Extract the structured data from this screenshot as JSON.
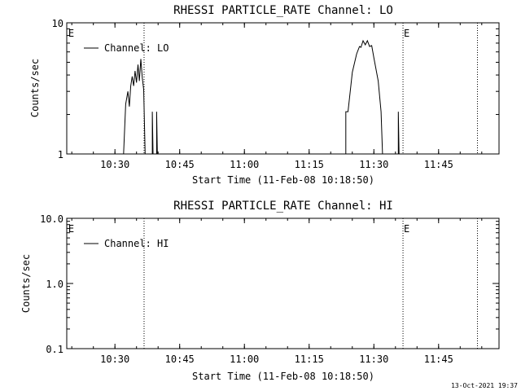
{
  "footer": {
    "timestamp": "13-Oct-2021 19:37"
  },
  "colors": {
    "background": "#ffffff",
    "foreground": "#000000"
  },
  "chart_data": [
    {
      "type": "line",
      "title": "RHESSI PARTICLE_RATE Channel: LO",
      "xlabel": "Start Time (11-Feb-08 10:18:50)",
      "ylabel": "Counts/sec",
      "yscale": "log",
      "xlim": [
        "10:18:50",
        "11:59:00"
      ],
      "ylim": [
        1,
        10
      ],
      "xticks": [
        "10:30",
        "10:45",
        "11:00",
        "11:15",
        "11:30",
        "11:45"
      ],
      "yticks": [
        "1",
        "10"
      ],
      "legend": {
        "label": "Channel: LO",
        "position": "top-left"
      },
      "event_markers": [
        {
          "time": "10:19:00",
          "label": "E",
          "line": false
        },
        {
          "time": "10:36:45",
          "label": "",
          "line": true
        },
        {
          "time": "11:36:45",
          "label": "E",
          "line": true
        },
        {
          "time": "11:54:00",
          "label": "",
          "line": true
        }
      ],
      "series": [
        {
          "name": "Channel: LO",
          "points": [
            [
              "10:32:00",
              1
            ],
            [
              "10:32:30",
              2.4
            ],
            [
              "10:33:00",
              3.0
            ],
            [
              "10:33:20",
              2.3
            ],
            [
              "10:33:40",
              3.3
            ],
            [
              "10:34:00",
              3.9
            ],
            [
              "10:34:20",
              3.3
            ],
            [
              "10:34:40",
              4.3
            ],
            [
              "10:35:00",
              3.5
            ],
            [
              "10:35:20",
              4.8
            ],
            [
              "10:35:40",
              3.6
            ],
            [
              "10:36:00",
              5.3
            ],
            [
              "10:36:20",
              3.8
            ],
            [
              "10:36:40",
              3.1
            ],
            [
              "10:37:00",
              1
            ],
            [
              "10:38:40",
              1
            ],
            [
              "10:38:40",
              2.1
            ],
            [
              "10:38:50",
              1
            ],
            [
              "10:39:40",
              1
            ],
            [
              "10:39:40",
              2.1
            ],
            [
              "10:39:50",
              1
            ],
            [
              "11:23:30",
              1
            ],
            [
              "11:23:30",
              2.1
            ],
            [
              "11:24:00",
              2.1
            ],
            [
              "11:25:00",
              4.2
            ],
            [
              "11:26:00",
              5.8
            ],
            [
              "11:26:40",
              6.6
            ],
            [
              "11:27:00",
              6.5
            ],
            [
              "11:27:30",
              7.3
            ],
            [
              "11:28:00",
              6.8
            ],
            [
              "11:28:30",
              7.3
            ],
            [
              "11:29:00",
              6.6
            ],
            [
              "11:29:30",
              6.7
            ],
            [
              "11:30:00",
              5.4
            ],
            [
              "11:31:00",
              3.6
            ],
            [
              "11:31:40",
              2.1
            ],
            [
              "11:32:00",
              1
            ],
            [
              "11:35:40",
              1
            ],
            [
              "11:35:40",
              2.1
            ],
            [
              "11:35:50",
              1
            ]
          ]
        }
      ]
    },
    {
      "type": "line",
      "title": "RHESSI PARTICLE_RATE Channel: HI",
      "xlabel": "Start Time (11-Feb-08 10:18:50)",
      "ylabel": "Counts/sec",
      "yscale": "log",
      "xlim": [
        "10:18:50",
        "11:59:00"
      ],
      "ylim": [
        0.1,
        10.0
      ],
      "xticks": [
        "10:30",
        "10:45",
        "11:00",
        "11:15",
        "11:30",
        "11:45"
      ],
      "yticks": [
        "0.1",
        "1.0",
        "10.0"
      ],
      "legend": {
        "label": "Channel: HI",
        "position": "top-left"
      },
      "event_markers": [
        {
          "time": "10:19:00",
          "label": "E",
          "line": false
        },
        {
          "time": "10:36:45",
          "label": "",
          "line": true
        },
        {
          "time": "11:36:45",
          "label": "E",
          "line": true
        },
        {
          "time": "11:54:00",
          "label": "",
          "line": true
        }
      ],
      "series": [
        {
          "name": "Channel: HI",
          "points": []
        }
      ]
    }
  ]
}
